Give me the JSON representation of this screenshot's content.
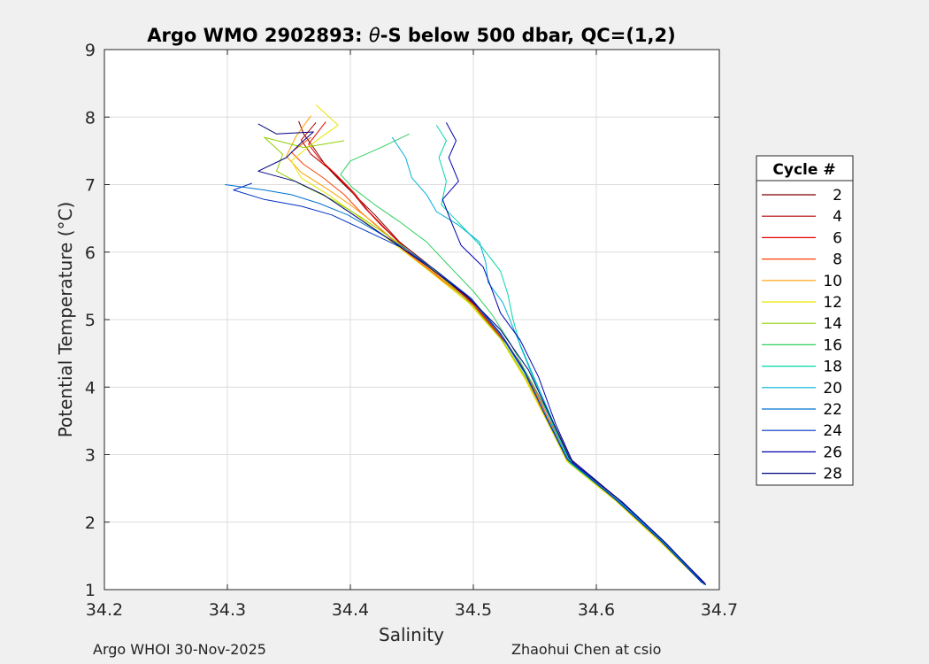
{
  "chart_data": {
    "type": "line",
    "title_prefix": "Argo WMO 2902893: ",
    "title_symbol": "θ",
    "title_suffix": "-S below 500 dbar,  QC=(1,2)",
    "xlabel": "Salinity",
    "ylabel": "Potential Temperature (°C)",
    "xlim": [
      34.2,
      34.7
    ],
    "ylim": [
      1,
      9
    ],
    "xticks": [
      34.2,
      34.3,
      34.4,
      34.5,
      34.6,
      34.7
    ],
    "xtick_labels": [
      "34.2",
      "34.3",
      "34.4",
      "34.5",
      "34.6",
      "34.7"
    ],
    "yticks": [
      1,
      2,
      3,
      4,
      5,
      6,
      7,
      8,
      9
    ],
    "ytick_labels": [
      "1",
      "2",
      "3",
      "4",
      "5",
      "6",
      "7",
      "8",
      "9"
    ],
    "grid": true,
    "legend": {
      "title": "Cycle #",
      "placement": "right"
    },
    "series": [
      {
        "name": "2",
        "color": "#800000",
        "values": [
          [
            34.358,
            7.94
          ],
          [
            34.362,
            7.75
          ],
          [
            34.37,
            7.55
          ],
          [
            34.38,
            7.28
          ],
          [
            34.392,
            7.05
          ],
          [
            34.405,
            6.82
          ],
          [
            34.42,
            6.55
          ],
          [
            34.44,
            6.15
          ],
          [
            34.47,
            5.72
          ],
          [
            34.5,
            5.25
          ],
          [
            34.525,
            4.72
          ],
          [
            34.545,
            4.15
          ],
          [
            34.565,
            3.45
          ],
          [
            34.58,
            2.9
          ],
          [
            34.62,
            2.3
          ],
          [
            34.655,
            1.7
          ],
          [
            34.688,
            1.08
          ]
        ]
      },
      {
        "name": "4",
        "color": "#b40000",
        "values": [
          [
            34.372,
            7.92
          ],
          [
            34.36,
            7.66
          ],
          [
            34.368,
            7.45
          ],
          [
            34.385,
            7.2
          ],
          [
            34.4,
            6.92
          ],
          [
            34.412,
            6.65
          ],
          [
            34.425,
            6.4
          ],
          [
            34.445,
            6.05
          ],
          [
            34.472,
            5.68
          ],
          [
            34.502,
            5.2
          ],
          [
            34.527,
            4.65
          ],
          [
            34.548,
            4.05
          ],
          [
            34.567,
            3.4
          ],
          [
            34.582,
            2.85
          ],
          [
            34.622,
            2.28
          ],
          [
            34.657,
            1.68
          ],
          [
            34.689,
            1.07
          ]
        ]
      },
      {
        "name": "6",
        "color": "#e60000",
        "values": [
          [
            34.38,
            7.93
          ],
          [
            34.366,
            7.6
          ],
          [
            34.375,
            7.38
          ],
          [
            34.39,
            7.12
          ],
          [
            34.403,
            6.88
          ],
          [
            34.415,
            6.6
          ],
          [
            34.43,
            6.32
          ],
          [
            34.448,
            6.0
          ],
          [
            34.475,
            5.62
          ],
          [
            34.503,
            5.15
          ],
          [
            34.528,
            4.62
          ],
          [
            34.547,
            4.08
          ],
          [
            34.566,
            3.42
          ],
          [
            34.581,
            2.87
          ],
          [
            34.621,
            2.29
          ],
          [
            34.656,
            1.69
          ],
          [
            34.689,
            1.08
          ]
        ]
      },
      {
        "name": "8",
        "color": "#ff4000",
        "values": [
          [
            34.368,
            7.7
          ],
          [
            34.352,
            7.48
          ],
          [
            34.362,
            7.3
          ],
          [
            34.378,
            7.1
          ],
          [
            34.395,
            6.85
          ],
          [
            34.408,
            6.6
          ],
          [
            34.422,
            6.38
          ],
          [
            34.442,
            6.05
          ],
          [
            34.47,
            5.65
          ],
          [
            34.5,
            5.22
          ],
          [
            34.525,
            4.7
          ],
          [
            34.545,
            4.12
          ],
          [
            34.564,
            3.43
          ],
          [
            34.579,
            2.88
          ],
          [
            34.619,
            2.31
          ],
          [
            34.654,
            1.71
          ],
          [
            34.687,
            1.09
          ]
        ]
      },
      {
        "name": "10",
        "color": "#ffa000",
        "values": [
          [
            34.368,
            8.02
          ],
          [
            34.356,
            7.72
          ],
          [
            34.348,
            7.42
          ],
          [
            34.36,
            7.18
          ],
          [
            34.38,
            6.95
          ],
          [
            34.4,
            6.7
          ],
          [
            34.418,
            6.45
          ],
          [
            34.44,
            6.1
          ],
          [
            34.468,
            5.7
          ],
          [
            34.498,
            5.24
          ],
          [
            34.523,
            4.7
          ],
          [
            34.543,
            4.1
          ],
          [
            34.562,
            3.44
          ],
          [
            34.577,
            2.89
          ],
          [
            34.617,
            2.3
          ],
          [
            34.652,
            1.72
          ],
          [
            34.686,
            1.1
          ]
        ]
      },
      {
        "name": "12",
        "color": "#e6e600",
        "values": [
          [
            34.372,
            8.18
          ],
          [
            34.39,
            7.88
          ],
          [
            34.37,
            7.62
          ],
          [
            34.352,
            7.35
          ],
          [
            34.36,
            7.1
          ],
          [
            34.382,
            6.85
          ],
          [
            34.405,
            6.55
          ],
          [
            34.43,
            6.2
          ],
          [
            34.462,
            5.75
          ],
          [
            34.496,
            5.25
          ],
          [
            34.522,
            4.72
          ],
          [
            34.542,
            4.12
          ],
          [
            34.561,
            3.45
          ],
          [
            34.576,
            2.9
          ],
          [
            34.616,
            2.31
          ],
          [
            34.651,
            1.72
          ],
          [
            34.686,
            1.1
          ]
        ]
      },
      {
        "name": "14",
        "color": "#90d000",
        "values": [
          [
            34.395,
            7.65
          ],
          [
            34.362,
            7.55
          ],
          [
            34.33,
            7.7
          ],
          [
            34.345,
            7.45
          ],
          [
            34.34,
            7.2
          ],
          [
            34.36,
            7.0
          ],
          [
            34.385,
            6.78
          ],
          [
            34.41,
            6.5
          ],
          [
            34.438,
            6.15
          ],
          [
            34.47,
            5.7
          ],
          [
            34.5,
            5.2
          ],
          [
            34.524,
            4.68
          ],
          [
            34.544,
            4.1
          ],
          [
            34.563,
            3.43
          ],
          [
            34.578,
            2.88
          ],
          [
            34.618,
            2.3
          ],
          [
            34.653,
            1.71
          ],
          [
            34.687,
            1.09
          ]
        ]
      },
      {
        "name": "16",
        "color": "#30d060",
        "values": [
          [
            34.448,
            7.75
          ],
          [
            34.425,
            7.55
          ],
          [
            34.4,
            7.35
          ],
          [
            34.392,
            7.15
          ],
          [
            34.402,
            6.95
          ],
          [
            34.42,
            6.7
          ],
          [
            34.44,
            6.45
          ],
          [
            34.462,
            6.15
          ],
          [
            34.48,
            5.8
          ],
          [
            34.5,
            5.42
          ],
          [
            34.515,
            5.08
          ],
          [
            34.53,
            4.65
          ],
          [
            34.547,
            4.08
          ],
          [
            34.566,
            3.42
          ],
          [
            34.58,
            2.86
          ],
          [
            34.62,
            2.29
          ],
          [
            34.655,
            1.7
          ],
          [
            34.688,
            1.08
          ]
        ]
      },
      {
        "name": "18",
        "color": "#00d8a8",
        "values": [
          [
            34.47,
            7.88
          ],
          [
            34.478,
            7.65
          ],
          [
            34.472,
            7.4
          ],
          [
            34.478,
            7.05
          ],
          [
            34.474,
            6.7
          ],
          [
            34.49,
            6.4
          ],
          [
            34.508,
            6.05
          ],
          [
            34.522,
            5.72
          ],
          [
            34.528,
            5.38
          ],
          [
            34.532,
            5.02
          ],
          [
            34.538,
            4.62
          ],
          [
            34.55,
            4.08
          ],
          [
            34.565,
            3.42
          ],
          [
            34.579,
            2.87
          ],
          [
            34.619,
            2.3
          ],
          [
            34.654,
            1.7
          ],
          [
            34.688,
            1.08
          ]
        ]
      },
      {
        "name": "20",
        "color": "#00b0d8",
        "values": [
          [
            34.434,
            7.7
          ],
          [
            34.445,
            7.4
          ],
          [
            34.45,
            7.1
          ],
          [
            34.462,
            6.85
          ],
          [
            34.47,
            6.6
          ],
          [
            34.488,
            6.4
          ],
          [
            34.505,
            6.15
          ],
          [
            34.51,
            5.85
          ],
          [
            34.512,
            5.55
          ],
          [
            34.524,
            5.25
          ],
          [
            34.533,
            4.85
          ],
          [
            34.548,
            4.2
          ],
          [
            34.566,
            3.44
          ],
          [
            34.58,
            2.88
          ],
          [
            34.62,
            2.29
          ],
          [
            34.655,
            1.7
          ],
          [
            34.688,
            1.07
          ]
        ]
      },
      {
        "name": "22",
        "color": "#0070d0",
        "values": [
          [
            34.298,
            7.0
          ],
          [
            34.33,
            6.92
          ],
          [
            34.352,
            6.85
          ],
          [
            34.375,
            6.72
          ],
          [
            34.398,
            6.55
          ],
          [
            34.42,
            6.32
          ],
          [
            34.445,
            6.05
          ],
          [
            34.47,
            5.72
          ],
          [
            34.498,
            5.3
          ],
          [
            34.522,
            4.78
          ],
          [
            34.542,
            4.2
          ],
          [
            34.561,
            3.5
          ],
          [
            34.577,
            2.92
          ],
          [
            34.617,
            2.32
          ],
          [
            34.653,
            1.72
          ],
          [
            34.687,
            1.09
          ]
        ]
      },
      {
        "name": "24",
        "color": "#0030c0",
        "values": [
          [
            34.32,
            7.02
          ],
          [
            34.305,
            6.92
          ],
          [
            34.33,
            6.78
          ],
          [
            34.36,
            6.68
          ],
          [
            34.385,
            6.55
          ],
          [
            34.412,
            6.32
          ],
          [
            34.44,
            6.08
          ],
          [
            34.468,
            5.75
          ],
          [
            34.498,
            5.32
          ],
          [
            34.522,
            4.8
          ],
          [
            34.542,
            4.22
          ],
          [
            34.56,
            3.52
          ],
          [
            34.576,
            2.94
          ],
          [
            34.616,
            2.33
          ],
          [
            34.652,
            1.73
          ],
          [
            34.686,
            1.1
          ]
        ]
      },
      {
        "name": "26",
        "color": "#0000b0",
        "values": [
          [
            34.478,
            7.92
          ],
          [
            34.486,
            7.65
          ],
          [
            34.48,
            7.4
          ],
          [
            34.488,
            7.05
          ],
          [
            34.475,
            6.78
          ],
          [
            34.482,
            6.45
          ],
          [
            34.49,
            6.1
          ],
          [
            34.508,
            5.78
          ],
          [
            34.515,
            5.45
          ],
          [
            34.522,
            5.1
          ],
          [
            34.538,
            4.7
          ],
          [
            34.553,
            4.15
          ],
          [
            34.567,
            3.45
          ],
          [
            34.581,
            2.88
          ],
          [
            34.621,
            2.3
          ],
          [
            34.656,
            1.7
          ],
          [
            34.689,
            1.07
          ]
        ]
      },
      {
        "name": "28",
        "color": "#000080",
        "values": [
          [
            34.325,
            7.9
          ],
          [
            34.34,
            7.75
          ],
          [
            34.37,
            7.78
          ],
          [
            34.36,
            7.62
          ],
          [
            34.348,
            7.4
          ],
          [
            34.325,
            7.2
          ],
          [
            34.355,
            7.05
          ],
          [
            34.378,
            6.85
          ],
          [
            34.405,
            6.52
          ],
          [
            34.435,
            6.15
          ],
          [
            34.462,
            5.8
          ],
          [
            34.495,
            5.35
          ],
          [
            34.522,
            4.85
          ],
          [
            34.545,
            4.25
          ],
          [
            34.563,
            3.55
          ],
          [
            34.578,
            2.95
          ],
          [
            34.618,
            2.34
          ],
          [
            34.654,
            1.73
          ],
          [
            34.688,
            1.1
          ]
        ]
      }
    ]
  },
  "footer": {
    "left": "Argo WHOI 30-Nov-2025",
    "right": "Zhaohui Chen at csio"
  }
}
